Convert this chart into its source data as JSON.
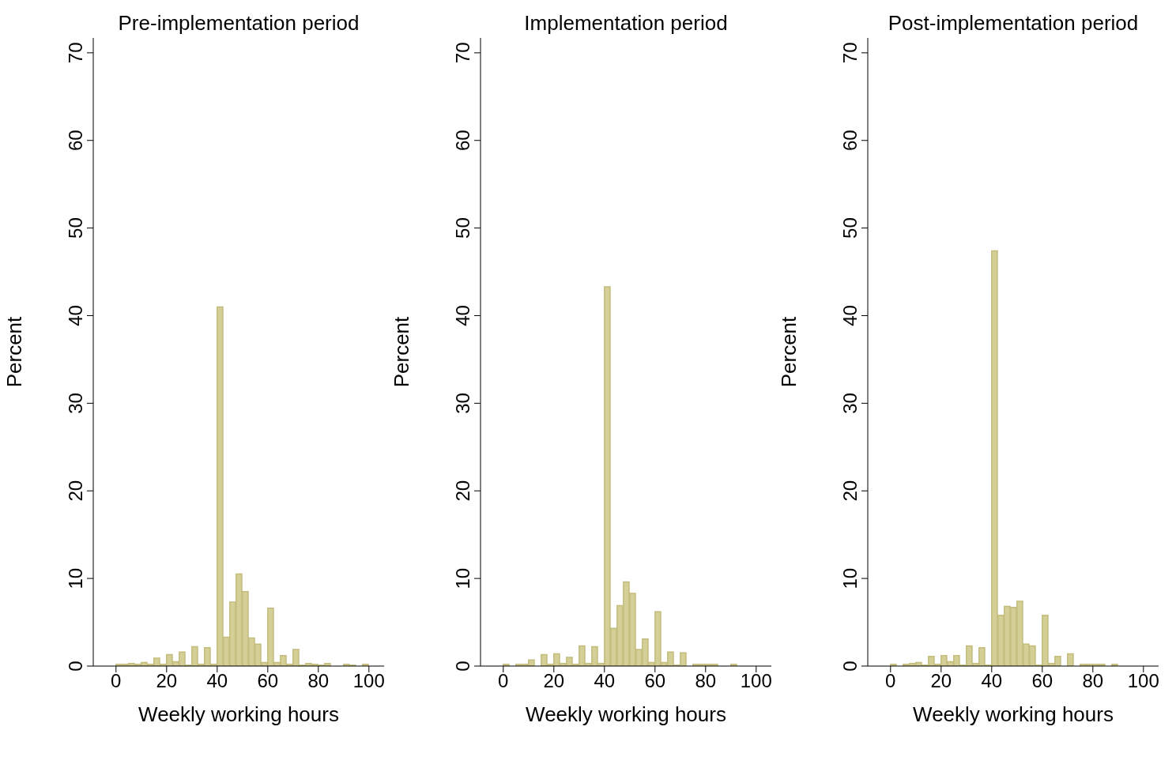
{
  "chart_data": [
    {
      "type": "histogram",
      "title": "Pre-implementation period",
      "xlabel": "Weekly working hours",
      "ylabel": "Percent",
      "color": "#d4cf96",
      "xlim": [
        -9,
        106
      ],
      "xticks": [
        0,
        20,
        40,
        60,
        80,
        100
      ],
      "ylim": [
        0,
        71.7
      ],
      "yticks": [
        0,
        10,
        20,
        30,
        40,
        50,
        60,
        70
      ],
      "grid": false,
      "bins": [
        0,
        2.5,
        5,
        7.5,
        10,
        12.5,
        15,
        17.5,
        20,
        22.5,
        25,
        27.5,
        30,
        32.5,
        35,
        37.5,
        40,
        42.5,
        45,
        47.5,
        50,
        52.5,
        55,
        57.5,
        60,
        62.5,
        65,
        67.5,
        70,
        72.5,
        75,
        77.5,
        80,
        82.5,
        85,
        87.5,
        90,
        92.5,
        95,
        97.5,
        100
      ],
      "values": [
        0.2,
        0.2,
        0.3,
        0.2,
        0.4,
        0.2,
        0.9,
        0.2,
        1.3,
        0.5,
        1.6,
        0.1,
        2.2,
        0.2,
        2.1,
        0.2,
        41,
        3.3,
        7.3,
        10.5,
        8.5,
        3.2,
        2.5,
        0.4,
        6.6,
        0.4,
        1.2,
        0.2,
        1.9,
        0.1,
        0.3,
        0.2,
        0.1,
        0.3,
        0,
        0,
        0.2,
        0.1,
        0,
        0.2
      ]
    },
    {
      "type": "histogram",
      "title": "Implementation period",
      "xlabel": "Weekly working hours",
      "ylabel": "Percent",
      "color": "#d4cf96",
      "xlim": [
        -9,
        106
      ],
      "xticks": [
        0,
        20,
        40,
        60,
        80,
        100
      ],
      "ylim": [
        0,
        71.7
      ],
      "yticks": [
        0,
        10,
        20,
        30,
        40,
        50,
        60,
        70
      ],
      "grid": false,
      "bins": [
        0,
        2.5,
        5,
        7.5,
        10,
        12.5,
        15,
        17.5,
        20,
        22.5,
        25,
        27.5,
        30,
        32.5,
        35,
        37.5,
        40,
        42.5,
        45,
        47.5,
        50,
        52.5,
        55,
        57.5,
        60,
        62.5,
        65,
        67.5,
        70,
        72.5,
        75,
        77.5,
        80,
        82.5,
        85,
        87.5,
        90,
        92.5,
        95,
        97.5,
        100
      ],
      "values": [
        0.2,
        0,
        0.2,
        0.2,
        0.7,
        0,
        1.3,
        0.2,
        1.4,
        0.3,
        1.0,
        0.2,
        2.3,
        0.3,
        2.2,
        0.3,
        43.3,
        4.3,
        6.9,
        9.6,
        8.3,
        1.9,
        3.1,
        0.4,
        6.2,
        0.4,
        1.6,
        0.1,
        1.5,
        0,
        0.2,
        0.2,
        0.2,
        0.2,
        0,
        0,
        0.2,
        0,
        0,
        0
      ]
    },
    {
      "type": "histogram",
      "title": "Post-implementation period",
      "xlabel": "Weekly working hours",
      "ylabel": "Percent",
      "color": "#d4cf96",
      "xlim": [
        -9,
        106
      ],
      "xticks": [
        0,
        20,
        40,
        60,
        80,
        100
      ],
      "ylim": [
        0,
        71.7
      ],
      "yticks": [
        0,
        10,
        20,
        30,
        40,
        50,
        60,
        70
      ],
      "grid": false,
      "bins": [
        0,
        2.5,
        5,
        7.5,
        10,
        12.5,
        15,
        17.5,
        20,
        22.5,
        25,
        27.5,
        30,
        32.5,
        35,
        37.5,
        40,
        42.5,
        45,
        47.5,
        50,
        52.5,
        55,
        57.5,
        60,
        62.5,
        65,
        67.5,
        70,
        72.5,
        75,
        77.5,
        80,
        82.5,
        85,
        87.5,
        90,
        92.5,
        95,
        97.5,
        100
      ],
      "values": [
        0.2,
        0,
        0.2,
        0.3,
        0.4,
        0.1,
        1.1,
        0.2,
        1.2,
        0.5,
        1.2,
        0.1,
        2.3,
        0.3,
        2.1,
        0.1,
        47.4,
        5.8,
        6.8,
        6.7,
        7.4,
        2.5,
        2.3,
        0.1,
        5.8,
        0.3,
        1.1,
        0,
        1.4,
        0,
        0.2,
        0.2,
        0.2,
        0.2,
        0,
        0.2,
        0,
        0,
        0,
        0
      ]
    }
  ]
}
